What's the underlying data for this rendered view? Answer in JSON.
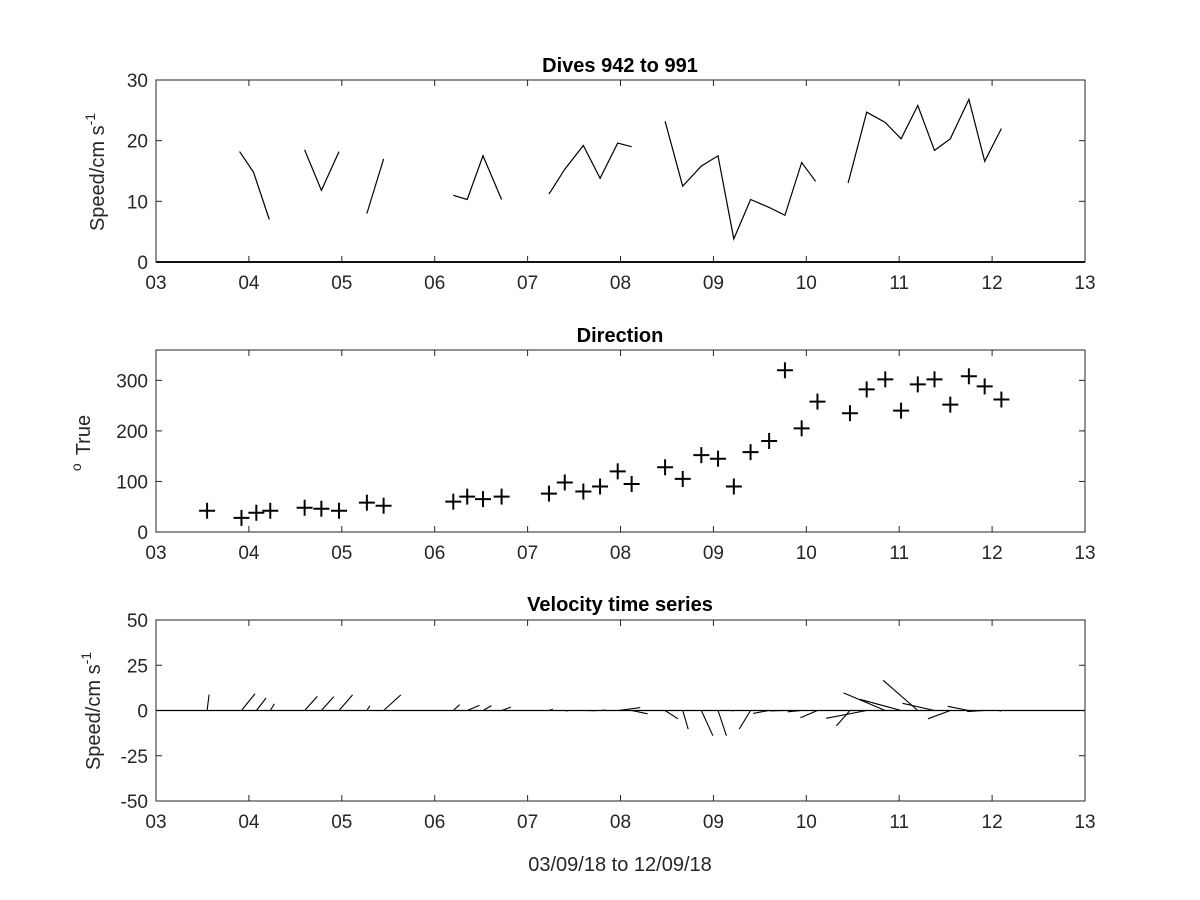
{
  "chart_data": [
    {
      "type": "line",
      "title": "Dives 942 to 991",
      "ylabel_main": "Speed/cm s",
      "ylabel_sup": "-1",
      "xlabel": "",
      "xlim": [
        3,
        13
      ],
      "ylim": [
        0,
        30
      ],
      "xticks": [
        "03",
        "04",
        "05",
        "06",
        "07",
        "08",
        "09",
        "10",
        "11",
        "12",
        "13"
      ],
      "yticks": [
        0,
        10,
        20,
        30
      ],
      "baseline": 0,
      "segments": [
        [
          [
            3.9,
            18.2
          ],
          [
            4.05,
            14.8
          ],
          [
            4.22,
            7.0
          ]
        ],
        [
          [
            4.6,
            18.5
          ],
          [
            4.78,
            11.8
          ],
          [
            4.97,
            18.2
          ]
        ],
        [
          [
            5.27,
            8.0
          ],
          [
            5.45,
            17.0
          ]
        ],
        [
          [
            6.2,
            11.0
          ],
          [
            6.35,
            10.3
          ],
          [
            6.52,
            17.5
          ],
          [
            6.72,
            10.3
          ]
        ],
        [
          [
            7.23,
            11.2
          ],
          [
            7.4,
            15.3
          ],
          [
            7.6,
            19.2
          ],
          [
            7.78,
            13.8
          ],
          [
            7.97,
            19.6
          ],
          [
            8.12,
            19.0
          ]
        ],
        [
          [
            8.48,
            23.2
          ],
          [
            8.67,
            12.5
          ],
          [
            8.87,
            15.8
          ],
          [
            9.05,
            17.5
          ],
          [
            9.22,
            3.8
          ],
          [
            9.4,
            10.3
          ],
          [
            9.6,
            9.0
          ],
          [
            9.77,
            7.7
          ],
          [
            9.95,
            16.4
          ],
          [
            10.1,
            13.3
          ]
        ],
        [
          [
            10.45,
            13.0
          ],
          [
            10.65,
            24.7
          ],
          [
            10.85,
            23.0
          ],
          [
            11.02,
            20.3
          ],
          [
            11.2,
            25.8
          ],
          [
            11.38,
            18.4
          ],
          [
            11.55,
            20.3
          ],
          [
            11.75,
            26.8
          ],
          [
            11.92,
            16.6
          ],
          [
            12.1,
            22.0
          ]
        ]
      ]
    },
    {
      "type": "scatter",
      "title": "Direction",
      "ylabel_main": "True",
      "ylabel_sup": "o",
      "xlabel": "",
      "xlim": [
        3,
        13
      ],
      "ylim": [
        0,
        360
      ],
      "xticks": [
        "03",
        "04",
        "05",
        "06",
        "07",
        "08",
        "09",
        "10",
        "11",
        "12",
        "13"
      ],
      "yticks": [
        0,
        100,
        200,
        300
      ],
      "marker": "+",
      "points": [
        [
          3.55,
          42
        ],
        [
          3.92,
          28
        ],
        [
          4.08,
          38
        ],
        [
          4.23,
          42
        ],
        [
          4.6,
          48
        ],
        [
          4.78,
          46
        ],
        [
          4.97,
          42
        ],
        [
          5.27,
          58
        ],
        [
          5.45,
          52
        ],
        [
          6.2,
          60
        ],
        [
          6.35,
          70
        ],
        [
          6.52,
          65
        ],
        [
          6.72,
          70
        ],
        [
          7.23,
          76
        ],
        [
          7.4,
          98
        ],
        [
          7.6,
          80
        ],
        [
          7.78,
          90
        ],
        [
          7.97,
          120
        ],
        [
          8.12,
          95
        ],
        [
          8.48,
          128
        ],
        [
          8.67,
          105
        ],
        [
          8.87,
          152
        ],
        [
          9.05,
          145
        ],
        [
          9.22,
          90
        ],
        [
          9.4,
          158
        ],
        [
          9.6,
          180
        ],
        [
          9.77,
          320
        ],
        [
          9.95,
          205
        ],
        [
          10.12,
          258
        ],
        [
          10.47,
          235
        ],
        [
          10.65,
          282
        ],
        [
          10.85,
          302
        ],
        [
          11.02,
          240
        ],
        [
          11.2,
          292
        ],
        [
          11.38,
          302
        ],
        [
          11.55,
          252
        ],
        [
          11.75,
          308
        ],
        [
          11.92,
          288
        ],
        [
          12.1,
          262
        ]
      ]
    },
    {
      "type": "quiver",
      "title": "Velocity time series",
      "ylabel_main": "Speed/cm s",
      "ylabel_sup": "-1",
      "xlabel": "03/09/18 to 12/09/18",
      "xlim": [
        3,
        13
      ],
      "ylim": [
        -50,
        50
      ],
      "xticks": [
        "03",
        "04",
        "05",
        "06",
        "07",
        "08",
        "09",
        "10",
        "11",
        "12",
        "13"
      ],
      "yticks": [
        50,
        25,
        0,
        -25,
        -50
      ],
      "baseline": 0,
      "vectors": [
        [
          3.55,
          1.1,
          8.8
        ],
        [
          3.92,
          7.5,
          9.3
        ],
        [
          4.08,
          5.4,
          6.9
        ],
        [
          4.23,
          2.3,
          3.7
        ],
        [
          4.6,
          7.0,
          7.8
        ],
        [
          4.78,
          6.9,
          7.7
        ],
        [
          4.97,
          7.5,
          8.6
        ],
        [
          5.27,
          1.6,
          2.6
        ],
        [
          5.45,
          9.5,
          8.6
        ],
        [
          6.2,
          3.5,
          3.2
        ],
        [
          6.35,
          6.8,
          2.8
        ],
        [
          6.52,
          4.7,
          2.7
        ],
        [
          6.72,
          5.2,
          1.9
        ],
        [
          7.23,
          2.2,
          0.8
        ],
        [
          7.4,
          1.9,
          -0.3
        ],
        [
          7.6,
          7.0,
          -0.1
        ],
        [
          7.78,
          3.2,
          0.3
        ],
        [
          7.97,
          12.4,
          1.6
        ],
        [
          8.12,
          8.8,
          -1.8
        ],
        [
          8.48,
          7.1,
          -4.6
        ],
        [
          8.67,
          3.0,
          -10.3
        ],
        [
          8.87,
          6.4,
          -13.9
        ],
        [
          9.05,
          4.6,
          -13.9
        ],
        [
          9.22,
          -1.1,
          -0.3
        ],
        [
          9.4,
          -6.2,
          -10.2
        ],
        [
          9.6,
          -8.8,
          -1.6
        ],
        [
          9.77,
          -8.2,
          -0.2
        ],
        [
          9.95,
          -7.7,
          -0.7
        ],
        [
          10.12,
          -9.4,
          -4.0
        ],
        [
          10.47,
          -7.5,
          -8.5
        ],
        [
          10.65,
          -22.4,
          -4.3
        ],
        [
          10.85,
          -23.1,
          9.7
        ],
        [
          11.02,
          -22.8,
          6.2
        ],
        [
          11.2,
          -19.1,
          16.7
        ],
        [
          11.38,
          -17.7,
          4.0
        ],
        [
          11.55,
          -12.4,
          -4.6
        ],
        [
          11.75,
          -11.7,
          2.3
        ],
        [
          11.92,
          -9.8,
          -0.6
        ],
        [
          12.1,
          -1.0,
          -0.4
        ]
      ]
    }
  ]
}
